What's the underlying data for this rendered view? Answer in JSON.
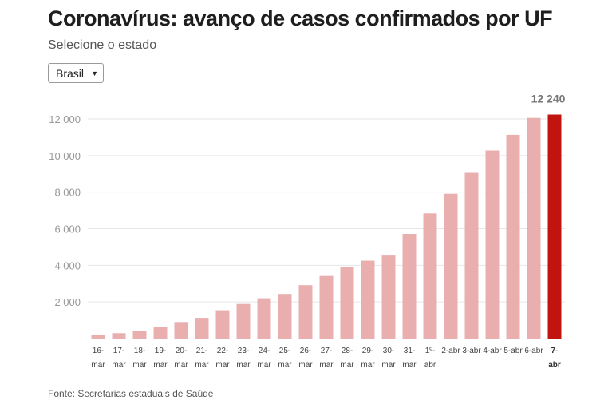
{
  "title": "Coronavírus: avanço de casos confirmados por UF",
  "subtitle": "Selecione o estado",
  "state_select": {
    "selected": "Brasil",
    "arrow_icon": "caret-down-icon"
  },
  "source": "Fonte: Secretarias estaduais de Saúde",
  "colors": {
    "bar": "#e8afae",
    "highlight_bar": "#c1140e",
    "grid": "#e6e6e6",
    "axis": "#333333"
  },
  "chart_data": {
    "type": "bar",
    "title": "Coronavírus: avanço de casos confirmados por UF",
    "xlabel": "",
    "ylabel": "",
    "ylim": [
      0,
      12500
    ],
    "y_ticks": [
      2000,
      4000,
      6000,
      8000,
      10000,
      12000
    ],
    "y_tick_labels": [
      "2 000",
      "4 000",
      "6 000",
      "8 000",
      "10 000",
      "12 000"
    ],
    "grid": true,
    "categories": [
      [
        "16-",
        "mar"
      ],
      [
        "17-",
        "mar"
      ],
      [
        "18-",
        "mar"
      ],
      [
        "19-",
        "mar"
      ],
      [
        "20-",
        "mar"
      ],
      [
        "21-",
        "mar"
      ],
      [
        "22-",
        "mar"
      ],
      [
        "23-",
        "mar"
      ],
      [
        "24-",
        "mar"
      ],
      [
        "25-",
        "mar"
      ],
      [
        "26-",
        "mar"
      ],
      [
        "27-",
        "mar"
      ],
      [
        "28-",
        "mar"
      ],
      [
        "29-",
        "mar"
      ],
      [
        "30-",
        "mar"
      ],
      [
        "31-",
        "mar"
      ],
      [
        "1º-",
        "abr"
      ],
      [
        "2-abr",
        ""
      ],
      [
        "3-abr",
        ""
      ],
      [
        "4-abr",
        ""
      ],
      [
        "5-abr",
        ""
      ],
      [
        "6-abr",
        ""
      ],
      [
        "7-",
        "abr"
      ]
    ],
    "values": [
      200,
      291,
      428,
      621,
      904,
      1128,
      1546,
      1891,
      2201,
      2433,
      2915,
      3417,
      3904,
      4256,
      4579,
      5717,
      6836,
      7910,
      9056,
      10278,
      11130,
      12056,
      12240
    ],
    "highlight_index": 22,
    "data_labels": [
      {
        "index": 22,
        "text": "12 240"
      }
    ]
  }
}
